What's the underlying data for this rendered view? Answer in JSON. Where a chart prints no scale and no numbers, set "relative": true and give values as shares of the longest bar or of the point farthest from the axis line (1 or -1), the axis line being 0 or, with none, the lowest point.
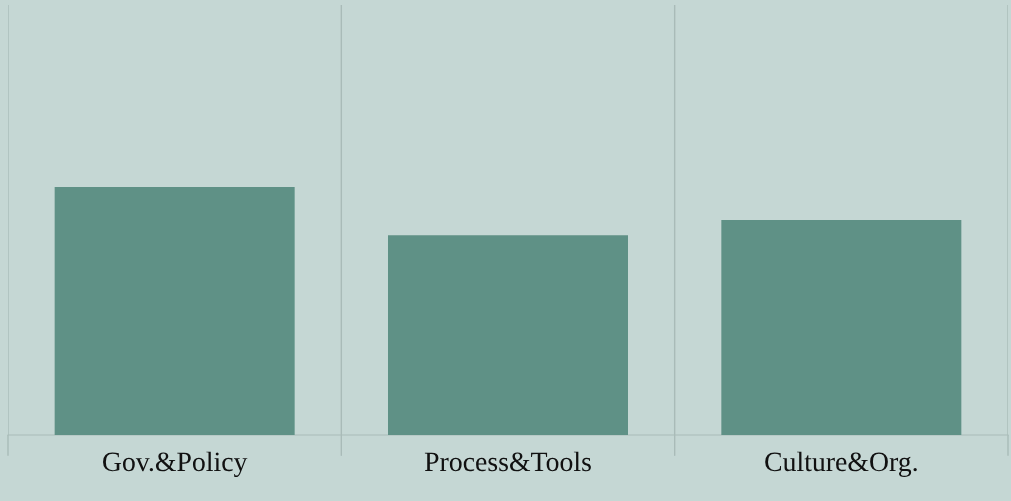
{
  "chart_data": {
    "type": "bar",
    "relative": true,
    "categories": [
      "Gov.&Policy",
      "Process&Tools",
      "Culture&Org."
    ],
    "values": [
      1,
      0.806,
      0.867
    ],
    "color": "#5f9186",
    "grid": "x"
  }
}
